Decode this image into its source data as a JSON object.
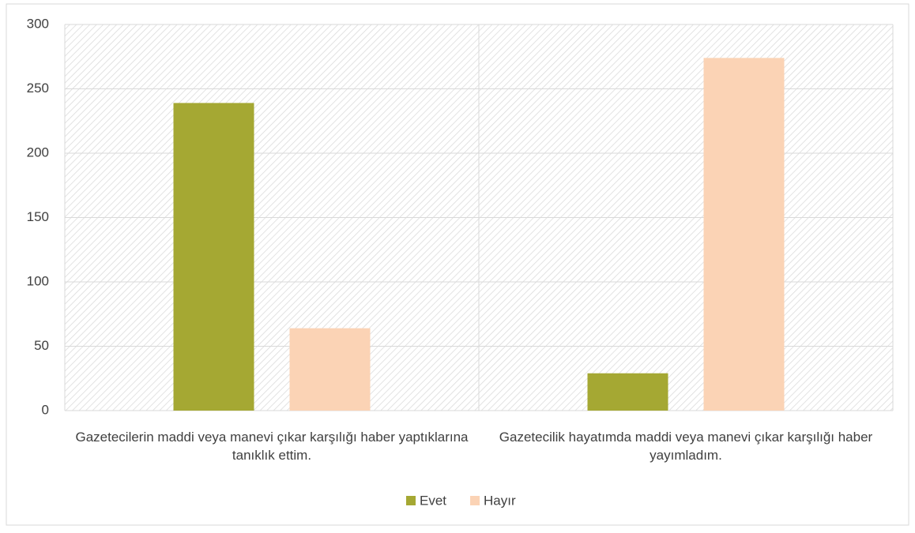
{
  "chart_data": {
    "type": "bar",
    "categories": [
      "Gazetecilerin maddi veya manevi çıkar karşılığı haber yaptıklarına tanıklık ettim.",
      "Gazetecilik hayatımda maddi veya manevi çıkar karşılığı haber yayımladım."
    ],
    "series": [
      {
        "name": "Evet",
        "color": "#a5a833",
        "values": [
          239,
          29
        ]
      },
      {
        "name": "Hayır",
        "color": "#fbd3b5",
        "values": [
          64,
          274
        ]
      }
    ],
    "ylim": [
      0,
      300
    ],
    "yticks": [
      0,
      50,
      100,
      150,
      200,
      250,
      300
    ],
    "grid": true,
    "legend": "bottom"
  }
}
